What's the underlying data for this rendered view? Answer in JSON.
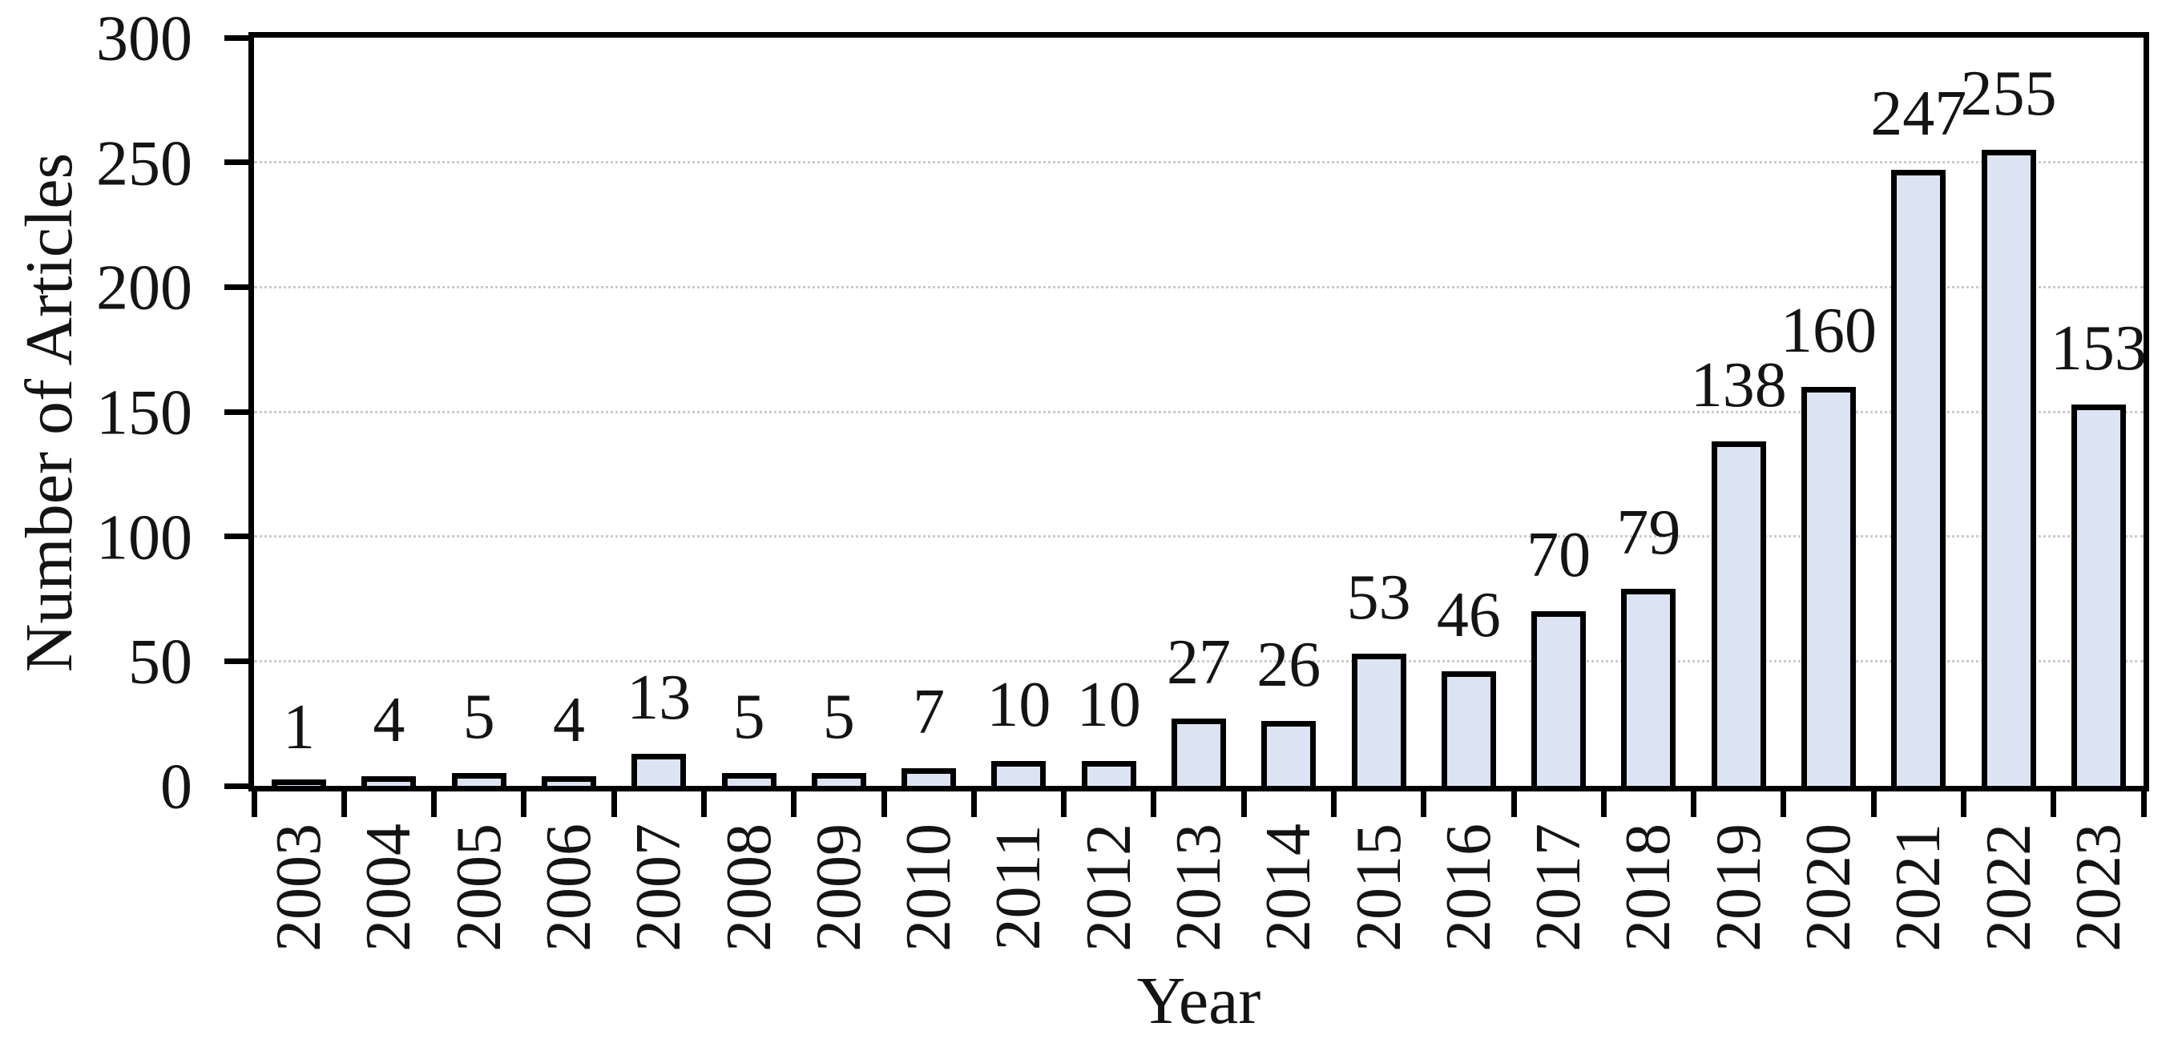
{
  "chart_data": {
    "type": "bar",
    "title": "",
    "xlabel": "Year",
    "ylabel": "Number of Articles",
    "categories": [
      "2003",
      "2004",
      "2005",
      "2006",
      "2007",
      "2008",
      "2009",
      "2010",
      "2011",
      "2012",
      "2013",
      "2014",
      "2015",
      "2016",
      "2017",
      "2018",
      "2019",
      "2020",
      "2021",
      "2022",
      "2023"
    ],
    "values": [
      1,
      4,
      5,
      4,
      13,
      5,
      5,
      7,
      10,
      10,
      27,
      26,
      53,
      46,
      70,
      79,
      138,
      160,
      247,
      255,
      153
    ],
    "ylim": [
      0,
      300
    ],
    "yticks": [
      0,
      50,
      100,
      150,
      200,
      250,
      300
    ],
    "gridlines": {
      "axis": "y",
      "values": [
        50,
        100,
        150,
        200,
        250
      ],
      "style": "dotted",
      "color": "#cbcbcb"
    },
    "legend_position": "none",
    "data_labels": "above-bars",
    "styles": {
      "bar_fill": "#dce4f3",
      "bar_border": "#000000",
      "axis_color": "#000000",
      "gridline_color": "#cbcbcb",
      "text_color": "#141414",
      "background": "#ffffff"
    }
  }
}
